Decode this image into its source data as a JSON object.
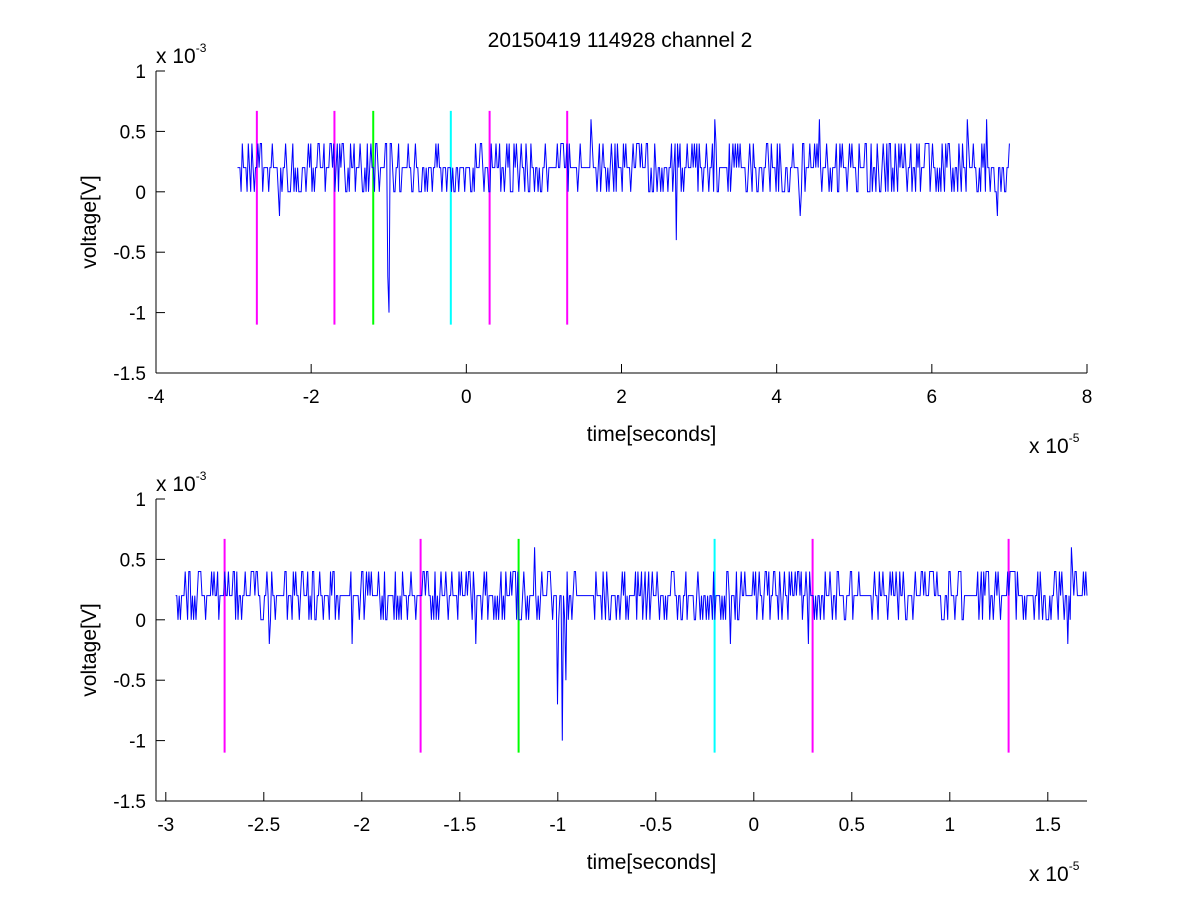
{
  "title": "20150419 114928 channel 2",
  "colors": {
    "signal": "#0000ff",
    "magenta": "#ff00ff",
    "green": "#00ff00",
    "cyan": "#00ffff",
    "axes": "#000000"
  },
  "chart_data": [
    {
      "type": "line",
      "title": "20150419 114928 channel 2",
      "xlabel": "time[seconds]",
      "ylabel": "voltage[V]",
      "x_multiplier": {
        "base": "x 10",
        "exp": "-5"
      },
      "y_multiplier": {
        "base": "x 10",
        "exp": "-3"
      },
      "xlim": [
        -4,
        8
      ],
      "ylim": [
        -1.5,
        1
      ],
      "xticks": [
        -4,
        -2,
        0,
        2,
        4,
        6,
        8
      ],
      "xtick_labels": [
        "-4",
        "-2",
        "0",
        "2",
        "4",
        "6",
        "8"
      ],
      "yticks": [
        -1.5,
        -1,
        -0.5,
        0,
        0.5,
        1
      ],
      "ytick_labels": [
        "-1.5",
        "-1",
        "-0.5",
        "0",
        "0.5",
        "1"
      ],
      "grid": false,
      "series": [
        {
          "style": "noise",
          "color": "#0000ff",
          "x_range": [
            -2.95,
            7.0
          ],
          "baseline": 0.2,
          "levels": [
            0,
            0.2,
            0.4
          ],
          "dips": [
            {
              "x": -1.0,
              "y": -1.0
            },
            {
              "x": -1.02,
              "y": -0.7
            },
            {
              "x": 2.7,
              "y": -0.4
            },
            {
              "x": -2.4,
              "y": -0.2
            },
            {
              "x": 4.3,
              "y": -0.2
            },
            {
              "x": 6.85,
              "y": -0.2
            }
          ],
          "peaks": [
            {
              "x": 3.2,
              "y": 0.6
            },
            {
              "x": 6.45,
              "y": 0.6
            },
            {
              "x": 6.7,
              "y": 0.6
            },
            {
              "x": 1.6,
              "y": 0.6
            },
            {
              "x": 4.55,
              "y": 0.6
            }
          ]
        }
      ],
      "vlines": [
        {
          "x": -2.7,
          "color": "#ff00ff",
          "ymin": -1.1,
          "ymax": 0.67
        },
        {
          "x": -1.7,
          "color": "#ff00ff",
          "ymin": -1.1,
          "ymax": 0.67
        },
        {
          "x": -1.2,
          "color": "#00ff00",
          "ymin": -1.1,
          "ymax": 0.67
        },
        {
          "x": -0.2,
          "color": "#00ffff",
          "ymin": -1.1,
          "ymax": 0.67
        },
        {
          "x": 0.3,
          "color": "#ff00ff",
          "ymin": -1.1,
          "ymax": 0.67
        },
        {
          "x": 1.3,
          "color": "#ff00ff",
          "ymin": -1.1,
          "ymax": 0.67
        }
      ]
    },
    {
      "type": "line",
      "title": "",
      "xlabel": "time[seconds]",
      "ylabel": "voltage[V]",
      "x_multiplier": {
        "base": "x 10",
        "exp": "-5"
      },
      "y_multiplier": {
        "base": "x 10",
        "exp": "-3"
      },
      "xlim": [
        -3.05,
        1.7
      ],
      "ylim": [
        -1.5,
        1
      ],
      "xticks": [
        -3,
        -2.5,
        -2,
        -1.5,
        -1,
        -0.5,
        0,
        0.5,
        1,
        1.5
      ],
      "xtick_labels": [
        "-3",
        "-2.5",
        "-2",
        "-1.5",
        "-1",
        "-0.5",
        "0",
        "0.5",
        "1",
        "1.5"
      ],
      "yticks": [
        -1.5,
        -1,
        -0.5,
        0,
        0.5,
        1
      ],
      "ytick_labels": [
        "-1.5",
        "-1",
        "-0.5",
        "0",
        "0.5",
        "1"
      ],
      "grid": false,
      "series": [
        {
          "style": "noise",
          "color": "#0000ff",
          "x_range": [
            -2.95,
            1.7
          ],
          "baseline": 0.2,
          "levels": [
            0,
            0.2,
            0.4
          ],
          "dips": [
            {
              "x": -0.98,
              "y": -1.0
            },
            {
              "x": -1.0,
              "y": -0.7
            },
            {
              "x": -0.96,
              "y": -0.5
            },
            {
              "x": -2.47,
              "y": -0.2
            },
            {
              "x": -2.05,
              "y": -0.2
            },
            {
              "x": -1.42,
              "y": -0.2
            },
            {
              "x": -0.12,
              "y": -0.2
            },
            {
              "x": 0.28,
              "y": -0.2
            },
            {
              "x": 1.6,
              "y": -0.2
            }
          ],
          "peaks": [
            {
              "x": -1.12,
              "y": 0.6
            },
            {
              "x": 1.62,
              "y": 0.6
            },
            {
              "x": -2.7,
              "y": 0.4
            },
            {
              "x": 1.68,
              "y": 0.4
            }
          ]
        }
      ],
      "vlines": [
        {
          "x": -2.7,
          "color": "#ff00ff",
          "ymin": -1.1,
          "ymax": 0.67
        },
        {
          "x": -1.7,
          "color": "#ff00ff",
          "ymin": -1.1,
          "ymax": 0.67
        },
        {
          "x": -1.2,
          "color": "#00ff00",
          "ymin": -1.1,
          "ymax": 0.67
        },
        {
          "x": -0.2,
          "color": "#00ffff",
          "ymin": -1.1,
          "ymax": 0.67
        },
        {
          "x": 0.3,
          "color": "#ff00ff",
          "ymin": -1.1,
          "ymax": 0.67
        },
        {
          "x": 1.3,
          "color": "#ff00ff",
          "ymin": -1.1,
          "ymax": 0.67
        }
      ]
    }
  ]
}
